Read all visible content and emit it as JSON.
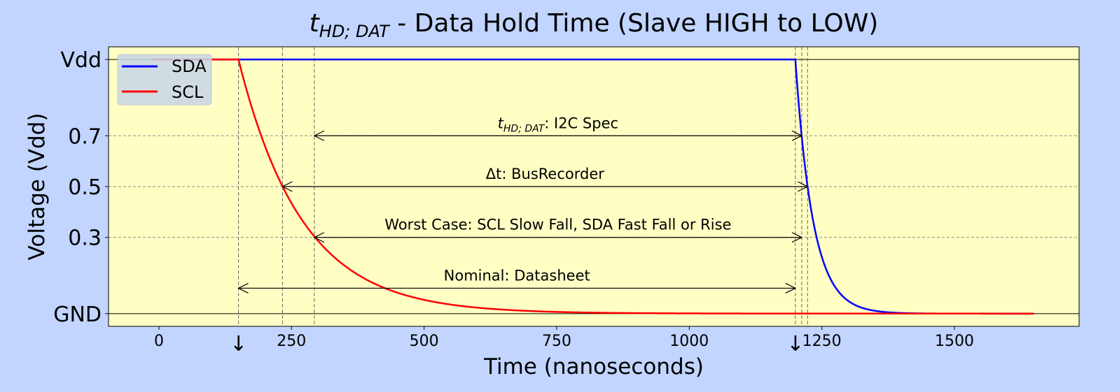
{
  "chart_data": {
    "type": "line",
    "title_main": "t",
    "title_sub": "HD; DAT",
    "title_rest": " - Data Hold Time (Slave HIGH to LOW)",
    "xlabel": "Time (nanoseconds)",
    "ylabel": "Voltage (Vdd)",
    "xlim": [
      -95,
      1735
    ],
    "ylim": [
      -0.05,
      1.05
    ],
    "x_ticks": [
      {
        "value": 0,
        "label": "0"
      },
      {
        "value": 250,
        "label": "250"
      },
      {
        "value": 500,
        "label": "500"
      },
      {
        "value": 750,
        "label": "750"
      },
      {
        "value": 1000,
        "label": "1000"
      },
      {
        "value": 1250,
        "label": "1250"
      },
      {
        "value": 1500,
        "label": "1500"
      }
    ],
    "x_markers": [
      {
        "value": 150,
        "label": "↓"
      },
      {
        "value": 1200,
        "label": "↓"
      }
    ],
    "y_ticks": [
      {
        "value": 1.0,
        "label": "Vdd"
      },
      {
        "value": 0.7,
        "label": "0.7"
      },
      {
        "value": 0.5,
        "label": "0.5"
      },
      {
        "value": 0.3,
        "label": "0.3"
      },
      {
        "value": 0.0,
        "label": "GND"
      }
    ],
    "grid": true,
    "legend_position": "upper-left",
    "series": [
      {
        "name": "SDA",
        "color": "#0000ff",
        "high_until": 1200,
        "fall_to": 0.0,
        "tau": 33.3,
        "start": -10,
        "end": 1650
      },
      {
        "name": "SCL",
        "color": "#ff0000",
        "high_until": 150,
        "fall_to": 0.0,
        "tau": 120,
        "start": -10,
        "end": 1650
      }
    ],
    "vlines": [
      150,
      233,
      293,
      1200,
      1212,
      1223
    ],
    "annotations": [
      {
        "label_main": "t",
        "label_sub": "HD; DAT",
        "label_rest": ": I2C Spec",
        "x_start": 293,
        "x_end": 1212,
        "y": 0.7
      },
      {
        "label": "Δt: BusRecorder",
        "x_start": 233,
        "x_end": 1223,
        "y": 0.5
      },
      {
        "label": "Worst Case: SCL Slow Fall, SDA Fast Fall or Rise",
        "x_start": 293,
        "x_end": 1212,
        "y": 0.3
      },
      {
        "label": "Nominal: Datasheet",
        "x_start": 150,
        "x_end": 1200,
        "y": 0.1
      }
    ]
  }
}
